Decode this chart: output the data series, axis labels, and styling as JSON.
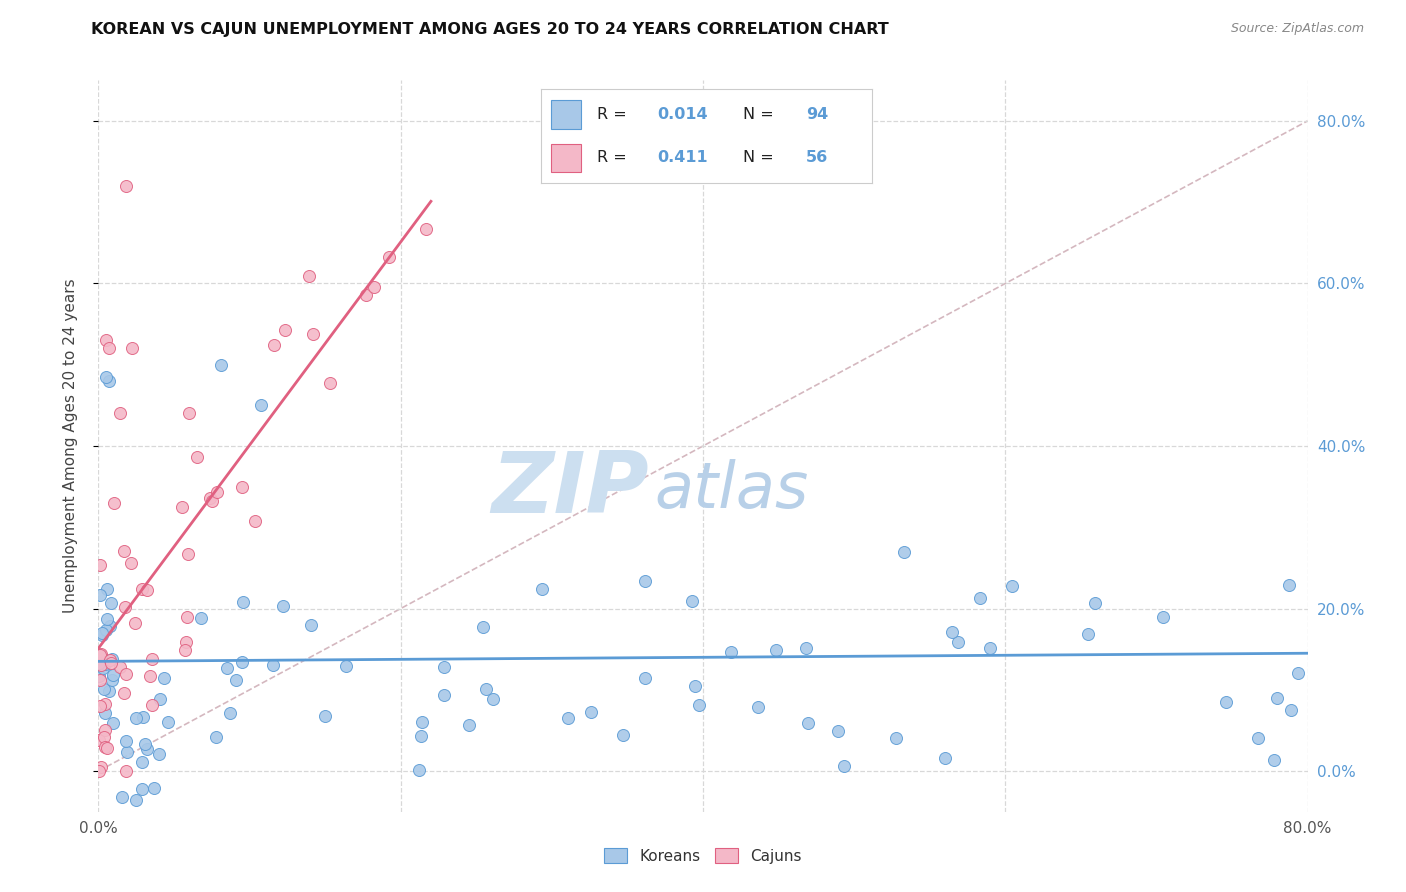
{
  "title": "KOREAN VS CAJUN UNEMPLOYMENT AMONG AGES 20 TO 24 YEARS CORRELATION CHART",
  "source": "Source: ZipAtlas.com",
  "ylabel": "Unemployment Among Ages 20 to 24 years",
  "korean_R": "0.014",
  "korean_N": "94",
  "cajun_R": "0.411",
  "cajun_N": "56",
  "xlim": [
    0.0,
    0.8
  ],
  "ylim": [
    -0.05,
    0.85
  ],
  "yticks": [
    0.0,
    0.2,
    0.4,
    0.6,
    0.8
  ],
  "ytick_labels": [
    "0.0%",
    "20.0%",
    "40.0%",
    "60.0%",
    "80.0%"
  ],
  "xtick_labels": [
    "0.0%",
    "80.0%"
  ],
  "korean_color_fill": "#a8c8e8",
  "korean_color_edge": "#5b9bd5",
  "cajun_color_fill": "#f4b8c8",
  "cajun_color_edge": "#e06080",
  "diag_color": "#d0b0b8",
  "korean_trend_color": "#5b9bd5",
  "cajun_trend_color": "#e06080",
  "watermark_zip_color": "#ccdff0",
  "watermark_atlas_color": "#b8d0e8",
  "grid_color": "#d8d8d8",
  "background_color": "#ffffff"
}
